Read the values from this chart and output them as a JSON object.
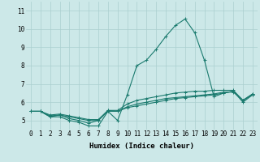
{
  "xlabel": "Humidex (Indice chaleur)",
  "bg_color": "#cce8e8",
  "grid_color": "#aacfcf",
  "line_color": "#1a7a6e",
  "xlim": [
    -0.5,
    23.5
  ],
  "ylim": [
    4.5,
    11.5
  ],
  "xticks": [
    0,
    1,
    2,
    3,
    4,
    5,
    6,
    7,
    8,
    9,
    10,
    11,
    12,
    13,
    14,
    15,
    16,
    17,
    18,
    19,
    20,
    21,
    22,
    23
  ],
  "yticks": [
    5,
    6,
    7,
    8,
    9,
    10,
    11
  ],
  "series": [
    [
      5.5,
      5.5,
      5.2,
      5.2,
      5.0,
      4.9,
      4.7,
      4.7,
      5.5,
      5.0,
      6.4,
      8.0,
      8.3,
      8.9,
      9.6,
      10.2,
      10.55,
      9.8,
      8.3,
      6.3,
      6.5,
      6.6,
      6.0,
      6.4
    ],
    [
      5.5,
      5.5,
      5.2,
      5.3,
      5.1,
      5.0,
      4.85,
      5.0,
      5.55,
      5.5,
      5.7,
      5.8,
      5.9,
      6.0,
      6.1,
      6.2,
      6.25,
      6.3,
      6.35,
      6.4,
      6.5,
      6.6,
      6.1,
      6.4
    ],
    [
      5.5,
      5.5,
      5.25,
      5.3,
      5.2,
      5.1,
      5.0,
      5.0,
      5.5,
      5.5,
      5.75,
      5.9,
      6.0,
      6.1,
      6.2,
      6.25,
      6.3,
      6.35,
      6.4,
      6.45,
      6.55,
      6.55,
      6.1,
      6.45
    ],
    [
      5.5,
      5.5,
      5.3,
      5.35,
      5.25,
      5.15,
      5.05,
      5.05,
      5.55,
      5.55,
      5.9,
      6.1,
      6.2,
      6.3,
      6.4,
      6.5,
      6.55,
      6.6,
      6.6,
      6.65,
      6.65,
      6.65,
      6.1,
      6.45
    ]
  ],
  "marker": "+",
  "marker_size": 3,
  "linewidth": 0.8,
  "label_fontsize": 6.5,
  "tick_fontsize": 5.5
}
